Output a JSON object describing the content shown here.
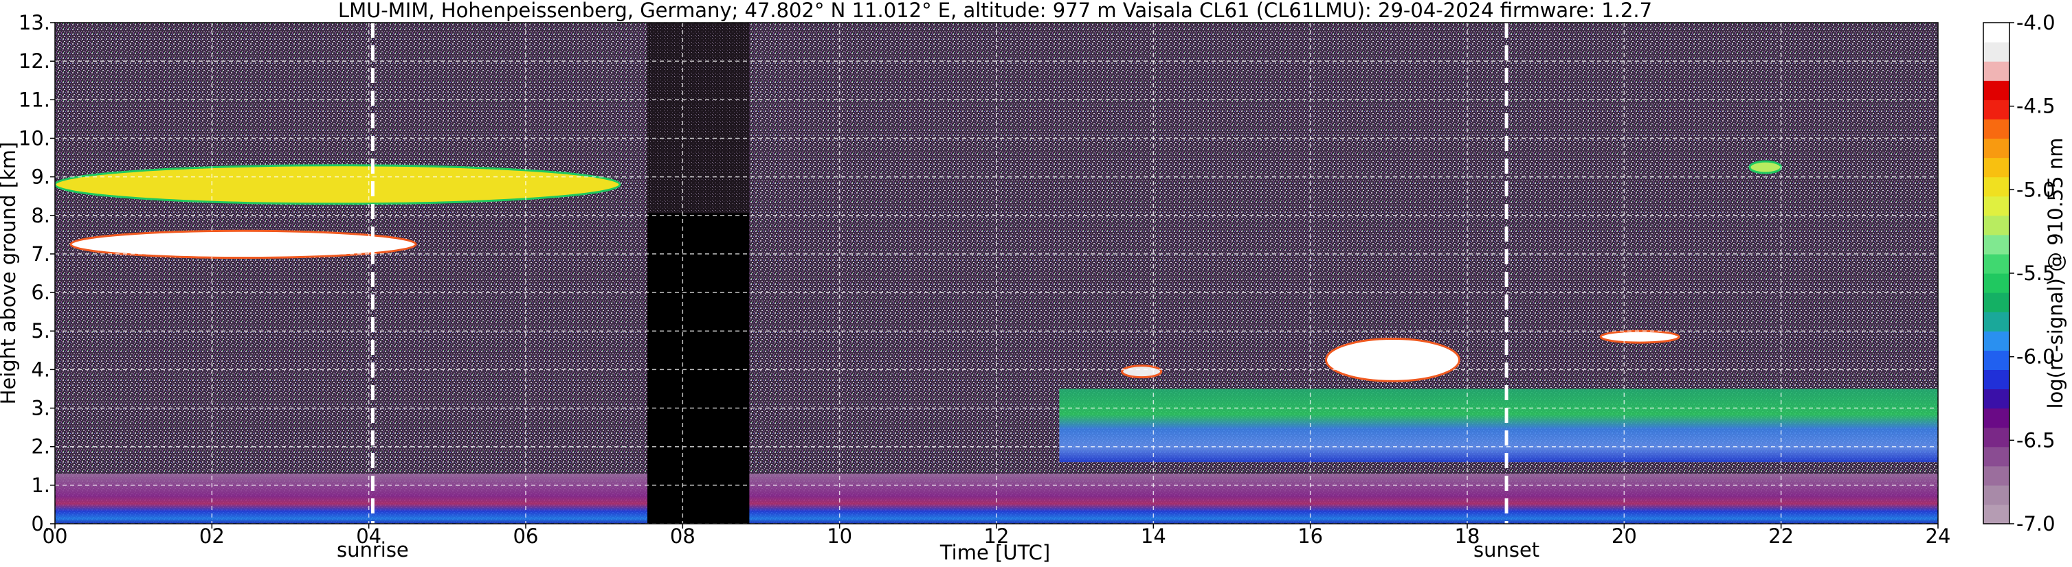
{
  "chart_data": {
    "type": "heatmap",
    "title": "LMU-MIM, Hohenpeissenberg, Germany; 47.802° N 11.012° E, altitude: 977 m    Vaisala CL61 (CL61LMU): 29-04-2024    firmware: 1.2.7",
    "xlabel": "Time [UTC]",
    "ylabel": "Height above ground [km]",
    "colorbar_label": "log(rc-signal) @ 910.55 nm",
    "xlim": [
      0,
      24
    ],
    "ylim": [
      0,
      13
    ],
    "x_ticks": [
      0,
      2,
      4,
      6,
      8,
      10,
      12,
      14,
      16,
      18,
      20,
      22,
      24
    ],
    "x_tick_labels": [
      "00",
      "02",
      "04",
      "06",
      "08",
      "10",
      "12",
      "14",
      "16",
      "18",
      "20",
      "22",
      "24"
    ],
    "y_ticks": [
      0,
      1,
      2,
      3,
      4,
      5,
      6,
      7,
      8,
      9,
      10,
      11,
      12,
      13
    ],
    "y_tick_labels": [
      "0.",
      "1.",
      "2.",
      "3.",
      "4.",
      "5.",
      "6.",
      "7.",
      "8.",
      "9.",
      "10.",
      "11.",
      "12.",
      "13."
    ],
    "grid": true,
    "colorbar_range": [
      -7.0,
      -4.0
    ],
    "colorbar_ticks": [
      -7.0,
      -6.5,
      -6.0,
      -5.5,
      -5.0,
      -4.5,
      -4.0
    ],
    "colorbar_tick_labels": [
      "-7.0",
      "-6.5",
      "-6.0",
      "-5.5",
      "-5.0",
      "-4.5",
      "-4.0"
    ],
    "colorbar_colors": [
      "#b59cb3",
      "#a88aa8",
      "#9b6e9d",
      "#8a4c92",
      "#7a2887",
      "#6a0a86",
      "#3a10a8",
      "#2030d8",
      "#2060f0",
      "#2a90f0",
      "#1aa89a",
      "#14b064",
      "#20c860",
      "#40d870",
      "#80e890",
      "#b8ec60",
      "#e0f040",
      "#f0e020",
      "#f8c010",
      "#f89a10",
      "#f86a10",
      "#f02010",
      "#e00000",
      "#f0b4b4",
      "#ececec",
      "#ffffff"
    ],
    "events": [
      {
        "label": "sunrise",
        "x": 4.05
      },
      {
        "label": "sunset",
        "x": 18.5
      }
    ],
    "no_data_periods": [
      [
        7.55,
        8.85
      ]
    ],
    "features": [
      {
        "x": [
          0.2,
          4.6
        ],
        "y": [
          6.9,
          7.6
        ],
        "level": -4.0
      },
      {
        "x": [
          0.0,
          7.2
        ],
        "y": [
          8.3,
          9.3
        ],
        "level": -5.0
      },
      {
        "x": [
          13.6,
          14.1
        ],
        "y": [
          3.8,
          4.1
        ],
        "level": -4.2
      },
      {
        "x": [
          16.2,
          17.9
        ],
        "y": [
          3.7,
          4.8
        ],
        "level": -4.0
      },
      {
        "x": [
          19.7,
          20.7
        ],
        "y": [
          4.7,
          5.0
        ],
        "level": -4.0
      },
      {
        "x": [
          21.6,
          22.0
        ],
        "y": [
          9.1,
          9.4
        ],
        "level": -5.2
      },
      {
        "x": [
          0.0,
          24.0
        ],
        "y": [
          0.0,
          1.3
        ],
        "level": -6.3
      },
      {
        "x": [
          12.8,
          24.0
        ],
        "y": [
          1.6,
          3.5
        ],
        "level": -5.9
      }
    ]
  }
}
